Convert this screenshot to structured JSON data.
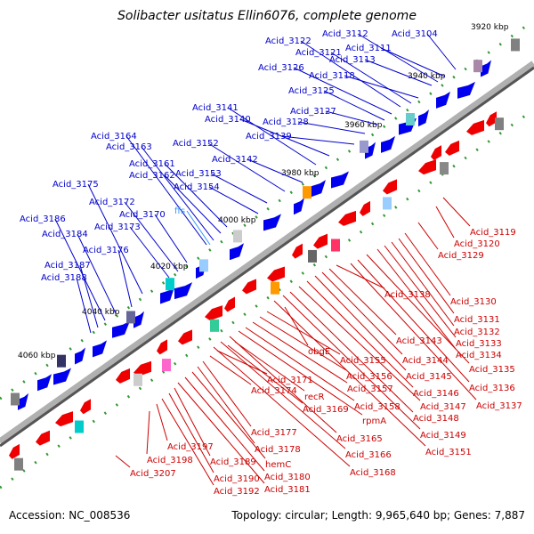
{
  "title": "Solibacter usitatus Ellin6076, complete genome",
  "accession": "Accession: NC_008536",
  "topology": "Topology: circular; Length: 9,965,640 bp; Genes: 7,887",
  "colors": {
    "forward_label": "#0000cc",
    "reverse_label": "#cc0000",
    "rna_label": "#3399ff",
    "backbone": "#808080",
    "tick": "#339933"
  },
  "kbp_ticks": [
    "3920 kbp",
    "3940 kbp",
    "3960 kbp",
    "3980 kbp",
    "4000 kbp",
    "4020 kbp",
    "4040 kbp",
    "4060 kbp"
  ],
  "forward_labels": [
    "Acid_3104",
    "Acid_3111",
    "Acid_3112",
    "Acid_3113",
    "Acid_3118",
    "Acid_3121",
    "Acid_3122",
    "Acid_3126",
    "Acid_3125",
    "Acid_3127",
    "Acid_3128",
    "Acid_3139",
    "Acid_3140",
    "Acid_3141",
    "Acid_3142",
    "Acid_3152",
    "Acid_3153",
    "Acid_3154",
    "Acid_3161",
    "Acid_3162",
    "Acid_3163",
    "Acid_3164",
    "Acid_3170",
    "Acid_3172",
    "Acid_3173",
    "Acid_3175",
    "Acid_3176",
    "Acid_3184",
    "Acid_3186",
    "Acid_3187",
    "Acid_3188"
  ],
  "rna_labels": [
    "ffs"
  ],
  "reverse_labels": [
    "Acid_3119",
    "Acid_3120",
    "Acid_3129",
    "Acid_3130",
    "Acid_3131",
    "Acid_3132",
    "Acid_3133",
    "Acid_3134",
    "Acid_3135",
    "Acid_3136",
    "Acid_3137",
    "Acid_3138",
    "Acid_3143",
    "Acid_3144",
    "Acid_3145",
    "Acid_3146",
    "Acid_3147",
    "Acid_3148",
    "Acid_3149",
    "Acid_3151",
    "obgE",
    "Acid_3155",
    "Acid_3156",
    "Acid_3157",
    "Acid_3158",
    "rpmA",
    "Acid_3165",
    "Acid_3166",
    "Acid_3168",
    "recR",
    "Acid_3169",
    "Acid_3171",
    "Acid_3174",
    "Acid_3177",
    "Acid_3178",
    "hemC",
    "Acid_3180",
    "Acid_3181",
    "Acid_3189",
    "Acid_3190",
    "Acid_3192",
    "Acid_3197",
    "Acid_3198",
    "Acid_3207"
  ]
}
